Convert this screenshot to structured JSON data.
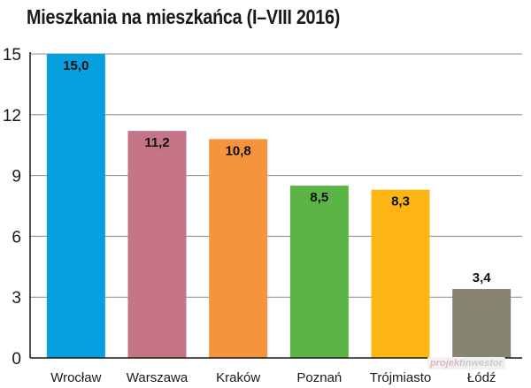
{
  "chart_data": {
    "type": "bar",
    "title": "Mieszkania na mieszkańca (I–VIII 2016)",
    "xlabel": "",
    "ylabel": "",
    "ylim": [
      0,
      15
    ],
    "yticks": [
      0,
      3,
      6,
      9,
      12,
      15
    ],
    "grid": true,
    "categories": [
      "Wrocław",
      "Warszawa",
      "Kraków",
      "Poznań",
      "Trójmiasto",
      "Łódź"
    ],
    "values": [
      15.0,
      11.2,
      10.8,
      8.5,
      8.3,
      3.4
    ],
    "value_labels": [
      "15,0",
      "11,2",
      "10,8",
      "8,5",
      "8,3",
      "3,4"
    ],
    "colors": [
      "#069fdf",
      "#c47485",
      "#f4953d",
      "#5cb446",
      "#fdb516",
      "#878371"
    ]
  },
  "watermark": {
    "part1": "projekt",
    "part2": "inwestor"
  }
}
